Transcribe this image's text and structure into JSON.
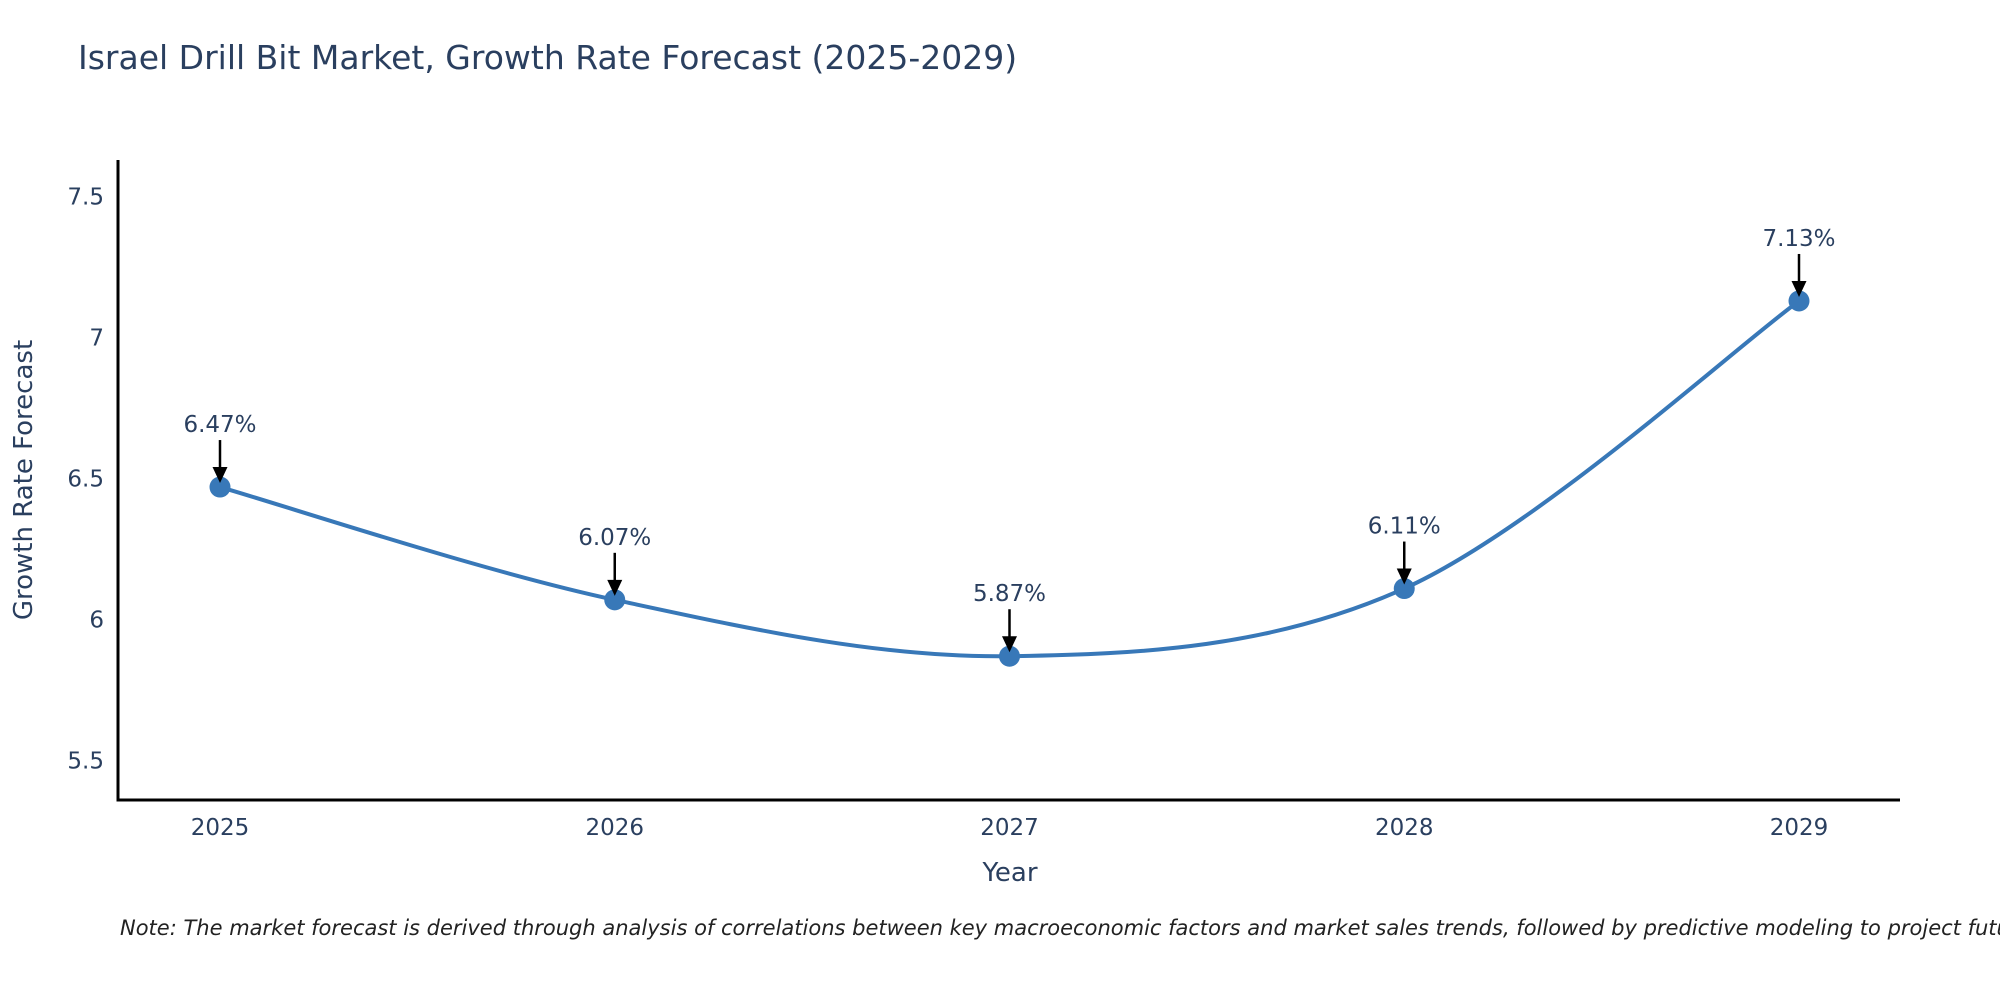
{
  "header": {
    "title": "Israel Drill Bit Market, Growth Rate Forecast (2025-2029)"
  },
  "footer": {
    "note": "Note: The market forecast is derived through analysis of correlations between key macroeconomic factors and market sales trends, followed by predictive modeling to project future sales"
  },
  "chart_data": {
    "type": "line",
    "title": "Israel Drill Bit Market, Growth Rate Forecast (2025-2029)",
    "xlabel": "Year",
    "ylabel": "Growth Rate Forecast",
    "x": [
      2025,
      2026,
      2027,
      2028,
      2029
    ],
    "values": [
      6.47,
      6.07,
      5.87,
      6.11,
      7.13
    ],
    "point_labels": [
      "6.47%",
      "6.07%",
      "5.87%",
      "6.11%",
      "7.13%"
    ],
    "xtick_labels": [
      "2025",
      "2026",
      "2027",
      "2028",
      "2029"
    ],
    "ytick_values": [
      5.5,
      6,
      6.5,
      7,
      7.5
    ],
    "ytick_labels": [
      "5.5",
      "6",
      "6.5",
      "7",
      "7.5"
    ],
    "ylim": [
      5.36,
      7.63
    ],
    "line_shape": "spline",
    "grid": false,
    "legend": false,
    "annotation_arrows": true,
    "colors": {
      "line": "#3878b8",
      "marker": "#3878b8",
      "axis": "#000000",
      "arrow": "#000000",
      "tick_text": "#2a3f5f",
      "annotation_text": "#2a3f5f",
      "title_text": "#2a3f5f",
      "note_text": "#222222",
      "background": "#ffffff"
    }
  }
}
